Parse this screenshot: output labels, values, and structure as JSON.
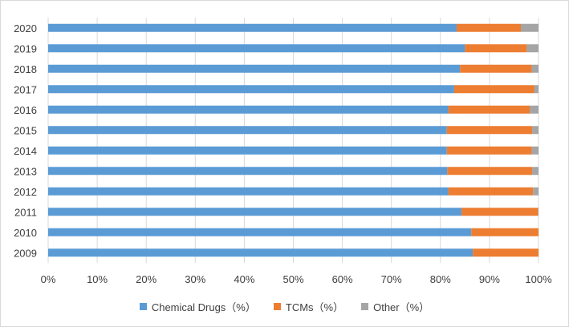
{
  "chart_data": {
    "type": "bar",
    "orientation": "horizontal",
    "stacked": true,
    "normalized_percent": true,
    "categories": [
      "2009",
      "2010",
      "2011",
      "2012",
      "2013",
      "2014",
      "2015",
      "2016",
      "2017",
      "2018",
      "2019",
      "2020"
    ],
    "series": [
      {
        "name": "Chemical Drugs（%）",
        "color": "#5b9bd5",
        "values": [
          86.6,
          86.3,
          84.3,
          81.6,
          81.4,
          81.3,
          81.3,
          81.6,
          82.8,
          84.0,
          85.0,
          83.3
        ]
      },
      {
        "name": "TCMs（%）",
        "color": "#ed7d31",
        "values": [
          13.4,
          13.7,
          15.6,
          17.3,
          17.3,
          17.3,
          17.4,
          16.6,
          16.3,
          14.6,
          12.6,
          13.1
        ]
      },
      {
        "name": "Other（%）",
        "color": "#a5a5a5",
        "values": [
          0.0,
          0.0,
          0.1,
          1.1,
          1.3,
          1.4,
          1.3,
          1.8,
          0.9,
          1.4,
          2.4,
          3.6
        ]
      }
    ],
    "x_ticks": [
      "0%",
      "10%",
      "20%",
      "30%",
      "40%",
      "50%",
      "60%",
      "70%",
      "80%",
      "90%",
      "100%"
    ],
    "xlim": [
      0,
      100
    ],
    "grid": true,
    "legend_position": "bottom",
    "title": "",
    "xlabel": "",
    "ylabel": ""
  }
}
